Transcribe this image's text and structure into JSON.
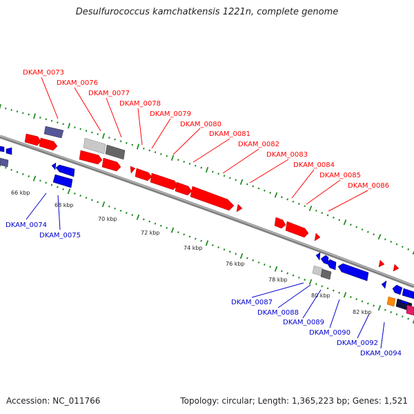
{
  "title": "Desulfurococcus kamchatkensis 1221n, complete genome",
  "accession": "Accession: NC_011766",
  "summary": "Topology: circular; Length: 1,365,223 bp; Genes: 1,521",
  "colors": {
    "red_gene": "#ff0000",
    "blue_gene": "#0000ee",
    "light_gray_gene": "#c8c8c8",
    "dark_gray_gene": "#666666",
    "purple_gene": "#555599",
    "orange_gene": "#ff8800",
    "navy_gene": "#111144",
    "magenta_gene": "#e0206a",
    "tick_green": "#228b22",
    "backbone": "#888888"
  },
  "scale_labels": [
    "66 kbp",
    "68 kbp",
    "70 kbp",
    "72 kbp",
    "74 kbp",
    "76 kbp",
    "78 kbp",
    "80 kbp",
    "82 kbp"
  ],
  "forward_labels": [
    "DKAM_0073",
    "DKAM_0076",
    "DKAM_0077",
    "DKAM_0078",
    "DKAM_0079",
    "DKAM_0080",
    "DKAM_0081",
    "DKAM_0082",
    "DKAM_0083",
    "DKAM_0084",
    "DKAM_0085",
    "DKAM_0086"
  ],
  "reverse_labels": [
    "DKAM_0074",
    "DKAM_0075",
    "DKAM_0087",
    "DKAM_0088",
    "DKAM_0089",
    "DKAM_0090",
    "DKAM_0092",
    "DKAM_0094"
  ]
}
